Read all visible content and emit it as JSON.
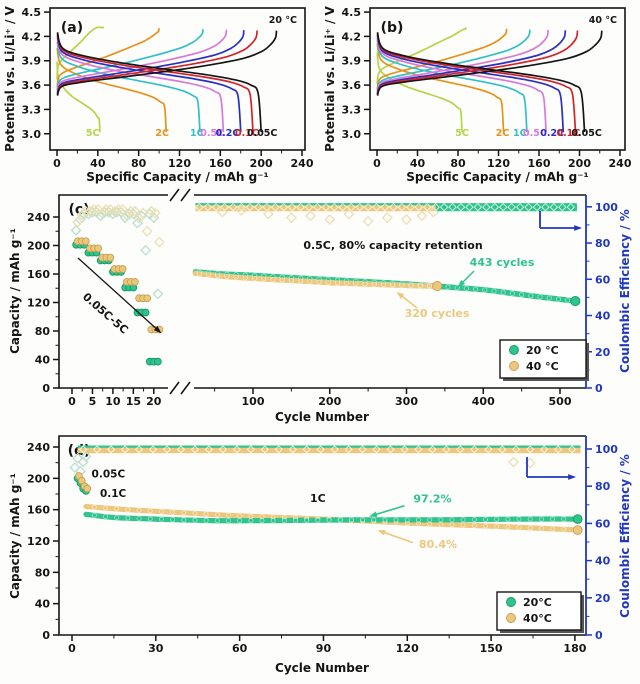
{
  "colors": {
    "black": "#151515",
    "green": "#2fc48d",
    "green_dark": "#149a66",
    "yellow": "#ecc87f",
    "yellow_dark": "#c8a050",
    "blue_axis": "#2038c0",
    "pale_green": "#b9dfd0",
    "pale_cream": "#ecdfb4",
    "rate_colors": {
      "0.05C": "#151515",
      "0.1C": "#d42329",
      "0.2C": "#2a2ec4",
      "0.5C": "#d77ad9",
      "1C": "#31c0c9",
      "2C": "#e8921e",
      "5C": "#b5d44a"
    }
  },
  "chart_data": [
    {
      "id": "a",
      "type": "line",
      "panel_label": "(a)",
      "corner_label": "20 °C",
      "xlabel": "Specific Capacity / mAh g⁻¹",
      "ylabel": "Potential vs. Li/Li⁺ / V",
      "xlim": [
        0,
        240
      ],
      "xticks": [
        0,
        40,
        80,
        120,
        160,
        200,
        240
      ],
      "ylim": [
        3.0,
        4.5
      ],
      "yticks": [
        "3.0",
        "3.3",
        "3.6",
        "3.9",
        "4.2",
        "4.5"
      ],
      "series": [
        {
          "rate": "0.05C",
          "discharge_capacity": 200,
          "charge_capacity": 215,
          "polarization": 0.0,
          "label_x": 201
        },
        {
          "rate": "0.1C",
          "discharge_capacity": 192,
          "charge_capacity": 196,
          "polarization": 0.02,
          "label_x": 186
        },
        {
          "rate": "0.2C",
          "discharge_capacity": 180,
          "charge_capacity": 183,
          "polarization": 0.045,
          "label_x": 167
        },
        {
          "rate": "0.5C",
          "discharge_capacity": 163,
          "charge_capacity": 166,
          "polarization": 0.08,
          "label_x": 152
        },
        {
          "rate": "1C",
          "discharge_capacity": 140,
          "charge_capacity": 143,
          "polarization": 0.13,
          "label_x": 137
        },
        {
          "rate": "2C",
          "discharge_capacity": 107,
          "charge_capacity": 100,
          "polarization": 0.21,
          "label_x": 103
        },
        {
          "rate": "5C",
          "discharge_capacity": 42,
          "charge_capacity": 46,
          "polarization": 0.4,
          "label_x": 35
        }
      ]
    },
    {
      "id": "b",
      "type": "line",
      "panel_label": "(b)",
      "corner_label": "40 °C",
      "xlabel": "Specific Capacity / mAh g⁻¹",
      "ylabel": "Potential vs. Li/Li⁺ / V",
      "xlim": [
        0,
        240
      ],
      "xticks": [
        0,
        40,
        80,
        120,
        160,
        200,
        240
      ],
      "ylim": [
        3.0,
        4.5
      ],
      "yticks": [
        "3.0",
        "3.3",
        "3.6",
        "3.9",
        "4.2",
        "4.5"
      ],
      "series": [
        {
          "rate": "0.05C",
          "discharge_capacity": 205,
          "charge_capacity": 222,
          "polarization": 0.0,
          "label_x": 207
        },
        {
          "rate": "0.1C",
          "discharge_capacity": 196,
          "charge_capacity": 198,
          "polarization": 0.015,
          "label_x": 189
        },
        {
          "rate": "0.2C",
          "discharge_capacity": 184,
          "charge_capacity": 186,
          "polarization": 0.035,
          "label_x": 173
        },
        {
          "rate": "0.5C",
          "discharge_capacity": 167,
          "charge_capacity": 169,
          "polarization": 0.06,
          "label_x": 156
        },
        {
          "rate": "1C",
          "discharge_capacity": 148,
          "charge_capacity": 151,
          "polarization": 0.095,
          "label_x": 141
        },
        {
          "rate": "2C",
          "discharge_capacity": 125,
          "charge_capacity": 128,
          "polarization": 0.15,
          "label_x": 124
        },
        {
          "rate": "5C",
          "discharge_capacity": 84,
          "charge_capacity": 88,
          "polarization": 0.28,
          "label_x": 84
        }
      ]
    },
    {
      "id": "c",
      "type": "scatter",
      "panel_label": "(c)",
      "xlabel": "Cycle Number",
      "ylabel_left": "Capacity / mAh g⁻¹",
      "ylabel_right": "Coulombic Efficiency / %",
      "x_axis": {
        "break": true,
        "segment1": {
          "range": [
            0,
            22
          ],
          "ticks": [
            0,
            5,
            10,
            15,
            20
          ],
          "minor": [
            2.5,
            7.5,
            12.5,
            17.5
          ]
        },
        "segment2": {
          "range": [
            23,
            530
          ],
          "ticks": [
            100,
            200,
            300,
            400,
            500
          ],
          "minor": [
            50,
            150,
            250,
            350,
            450
          ]
        }
      },
      "y_left": {
        "range": [
          0,
          240
        ],
        "ticks": [
          0,
          40,
          80,
          120,
          160,
          200,
          240
        ]
      },
      "y_right": {
        "range": [
          0,
          100
        ],
        "ticks": [
          0,
          20,
          40,
          60,
          80,
          100
        ]
      },
      "rate_test": {
        "rates": [
          "0.05C",
          "0.1C",
          "0.2C",
          "0.5C",
          "1C",
          "2C",
          "5C"
        ],
        "cycles_per_rate": 3,
        "capacity_20C": [
          201,
          190,
          179,
          163,
          141,
          106,
          37
        ],
        "capacity_40C": [
          206,
          196,
          183,
          167,
          149,
          126,
          82
        ]
      },
      "coulombic": {
        "seg1_20C": [
          [
            1,
            87
          ],
          [
            2,
            93
          ],
          [
            3,
            96
          ],
          [
            4,
            96
          ],
          [
            5,
            97
          ],
          [
            6,
            97
          ],
          [
            7,
            95
          ],
          [
            8,
            97
          ],
          [
            9,
            97
          ],
          [
            10,
            96
          ],
          [
            11,
            97
          ],
          [
            12,
            97
          ],
          [
            13,
            94
          ],
          [
            14,
            96
          ],
          [
            15,
            96
          ],
          [
            16,
            91
          ],
          [
            17,
            95
          ],
          [
            18,
            76
          ],
          [
            19,
            96
          ],
          [
            20,
            94
          ],
          [
            21,
            52
          ]
        ],
        "seg1_40C": [
          [
            1,
            91
          ],
          [
            2,
            95
          ],
          [
            3,
            97
          ],
          [
            4,
            97
          ],
          [
            5,
            98
          ],
          [
            6,
            98
          ],
          [
            7,
            96
          ],
          [
            8,
            98
          ],
          [
            9,
            98
          ],
          [
            10,
            97
          ],
          [
            11,
            98
          ],
          [
            12,
            98
          ],
          [
            13,
            95
          ],
          [
            14,
            97
          ],
          [
            15,
            97
          ],
          [
            16,
            93
          ],
          [
            17,
            96
          ],
          [
            18,
            86
          ],
          [
            19,
            97
          ],
          [
            20,
            96
          ],
          [
            21,
            80
          ]
        ],
        "band_20C": {
          "level": 100.4,
          "range": [
            25,
            522
          ]
        },
        "band_40C": {
          "level": 99.2,
          "range": [
            25,
            340
          ]
        },
        "outliers": [
          [
            120,
            96
          ],
          [
            150,
            94
          ],
          [
            175,
            95
          ],
          [
            200,
            93
          ],
          [
            225,
            96
          ],
          [
            250,
            92
          ],
          [
            275,
            94
          ],
          [
            300,
            93
          ],
          [
            320,
            95
          ],
          [
            335,
            97
          ],
          [
            60,
            97
          ],
          [
            85,
            98
          ]
        ]
      },
      "longterm": {
        "series": [
          {
            "name": "20 °C",
            "color_key": "green",
            "points": [
              [
                25,
                163
              ],
              [
                60,
                160
              ],
              [
                100,
                158
              ],
              [
                150,
                155
              ],
              [
                200,
                152
              ],
              [
                250,
                149
              ],
              [
                300,
                146
              ],
              [
                350,
                142
              ],
              [
                400,
                138
              ],
              [
                443,
                132
              ],
              [
                480,
                127
              ],
              [
                520,
                122
              ]
            ]
          },
          {
            "name": "40 °C",
            "color_key": "yellow",
            "points": [
              [
                25,
                161
              ],
              [
                60,
                157
              ],
              [
                100,
                154
              ],
              [
                150,
                151
              ],
              [
                200,
                148
              ],
              [
                250,
                146
              ],
              [
                300,
                144
              ],
              [
                340,
                143
              ]
            ]
          }
        ]
      },
      "annotations": {
        "rate_arrow_label": "0.05C-5C",
        "retention_label": "0.5C, 80% capacity retention",
        "cycles_20C_label": "443 cycles",
        "cycles_40C_label": "320 cycles"
      },
      "legend": [
        {
          "label": "20 °C",
          "color_key": "green"
        },
        {
          "label": "40 °C",
          "color_key": "yellow"
        }
      ]
    },
    {
      "id": "d",
      "type": "scatter",
      "panel_label": "(d)",
      "xlabel": "Cycle Number",
      "ylabel_left": "Capacity / mAh g⁻¹",
      "ylabel_right": "Coulombic Efficiency / %",
      "x_axis": {
        "range": [
          0,
          185
        ],
        "ticks": [
          0,
          30,
          60,
          90,
          120,
          150,
          180
        ],
        "minor": [
          15,
          45,
          75,
          105,
          135,
          165
        ]
      },
      "y_left": {
        "range": [
          0,
          240
        ],
        "ticks": [
          0,
          40,
          80,
          120,
          160,
          200,
          240
        ]
      },
      "y_right": {
        "range": [
          0,
          100
        ],
        "ticks": [
          0,
          20,
          40,
          60,
          80,
          100
        ]
      },
      "initial_rates": {
        "labels": [
          "0.05C",
          "0.1C"
        ],
        "points_20C": [
          [
            2,
            200
          ],
          [
            3,
            194
          ],
          [
            4,
            187
          ],
          [
            5,
            184
          ]
        ],
        "points_40C": [
          [
            2,
            203
          ],
          [
            3,
            197
          ],
          [
            4,
            190
          ],
          [
            5,
            187
          ]
        ]
      },
      "series": [
        {
          "name": "20°C",
          "color_key": "green",
          "rate": "1C",
          "retention_label": "97.2%",
          "points": [
            [
              5,
              154
            ],
            [
              15,
              150
            ],
            [
              30,
              148
            ],
            [
              50,
              146
            ],
            [
              70,
              146
            ],
            [
              100,
              147
            ],
            [
              130,
              147
            ],
            [
              160,
              148
            ],
            [
              181,
              148
            ]
          ]
        },
        {
          "name": "40°C",
          "color_key": "yellow",
          "rate": "1C",
          "retention_label": "80.4%",
          "points": [
            [
              5,
              164
            ],
            [
              20,
              160
            ],
            [
              40,
              156
            ],
            [
              60,
              152
            ],
            [
              90,
              148
            ],
            [
              120,
              143
            ],
            [
              150,
              139
            ],
            [
              181,
              134
            ]
          ]
        }
      ],
      "coulombic": {
        "band_20C": {
          "level": 100.4,
          "range": [
            2,
            182
          ]
        },
        "band_40C": {
          "level": 99.2,
          "range": [
            2,
            182
          ]
        },
        "start_scatter": [
          [
            1,
            90
          ],
          [
            2,
            95
          ],
          [
            3,
            88
          ],
          [
            4,
            93
          ],
          [
            5,
            96
          ]
        ],
        "outliers": [
          [
            158,
            93
          ],
          [
            164,
            92.5
          ]
        ]
      },
      "annotations": {
        "rate_label": "1C"
      },
      "legend": [
        {
          "label": "20°C",
          "color_key": "green"
        },
        {
          "label": "40°C",
          "color_key": "yellow"
        }
      ]
    }
  ]
}
